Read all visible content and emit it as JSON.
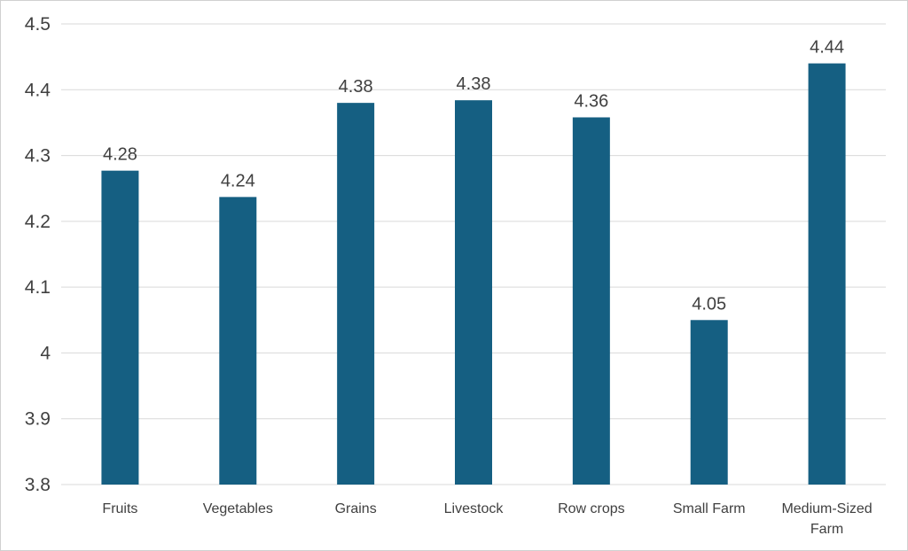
{
  "chart_data": {
    "type": "bar",
    "categories": [
      "Fruits",
      "Vegetables",
      "Grains",
      "Livestock",
      "Row crops",
      "Small Farm",
      "Medium-Sized Farm"
    ],
    "category_lines": [
      [
        "Fruits"
      ],
      [
        "Vegetables"
      ],
      [
        "Grains"
      ],
      [
        "Livestock"
      ],
      [
        "Row crops"
      ],
      [
        "Small Farm"
      ],
      [
        "Medium-Sized",
        "Farm"
      ]
    ],
    "values": [
      4.277,
      4.237,
      4.38,
      4.384,
      4.358,
      4.05,
      4.44
    ],
    "data_labels": [
      "4.28",
      "4.24",
      "4.38",
      "4.38",
      "4.36",
      "4.05",
      "4.44"
    ],
    "title": "",
    "xlabel": "",
    "ylabel": "",
    "ylim": [
      3.8,
      4.5
    ],
    "yticks": [
      3.8,
      3.9,
      4.0,
      4.1,
      4.2,
      4.3,
      4.4,
      4.5
    ],
    "ytick_labels": [
      "3.8",
      "3.9",
      "4",
      "4.1",
      "4.2",
      "4.3",
      "4.4",
      "4.5"
    ],
    "grid": true,
    "legend": "none",
    "bar_color": "#155f82",
    "grid_color": "#d9d9d9",
    "text_color": "#404040"
  }
}
